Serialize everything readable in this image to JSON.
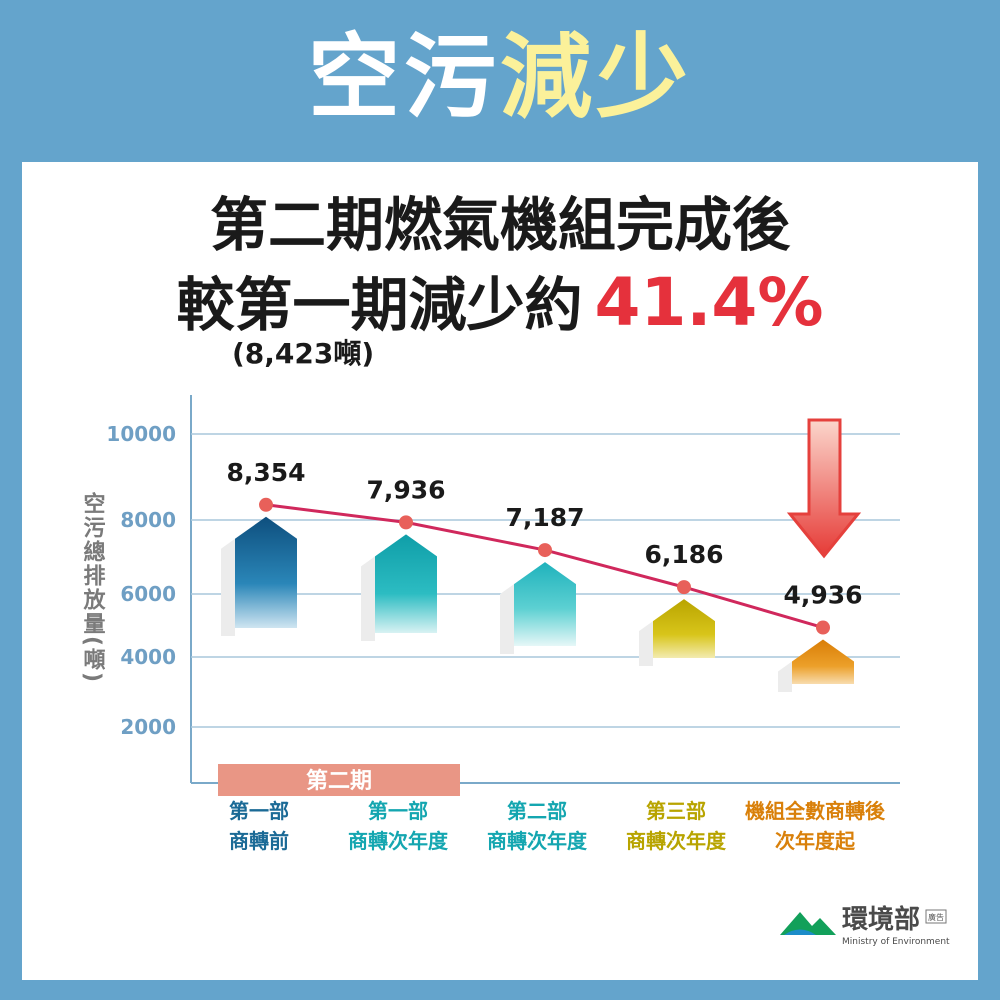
{
  "headline": {
    "white_part": "空污",
    "yellow_part": "減少"
  },
  "title": {
    "line1": "第二期燃氣機組完成後",
    "line2_prefix": "較第一期減少約",
    "line2_highlight": "41.4%",
    "note": "(8,423噸)"
  },
  "chart_data": {
    "type": "line",
    "ylabel": "空污總排放量(噸)",
    "yticks": [
      10000,
      8000,
      6000,
      4000,
      2000
    ],
    "categories": [
      [
        "第一部",
        "商轉前"
      ],
      [
        "第一部",
        "商轉次年度"
      ],
      [
        "第二部",
        "商轉次年度"
      ],
      [
        "第三部",
        "商轉次年度"
      ],
      [
        "機組全數商轉後",
        "次年度起"
      ]
    ],
    "values": [
      8354,
      7936,
      7187,
      6186,
      4936
    ],
    "value_labels": [
      "8,354",
      "7,936",
      "7,187",
      "6,186",
      "4,936"
    ],
    "band_label": "第二期",
    "colors": {
      "line": "#d0285c",
      "point": "#e8605a",
      "category_text": [
        "#1b6a96",
        "#14a6b0",
        "#14a6b0",
        "#b8a400",
        "#d9800a"
      ],
      "band": "#e99685",
      "arrow": "#e5403c"
    }
  },
  "logo": {
    "name": "環境部",
    "tag": "廣告",
    "english": "Ministry of Environment"
  }
}
